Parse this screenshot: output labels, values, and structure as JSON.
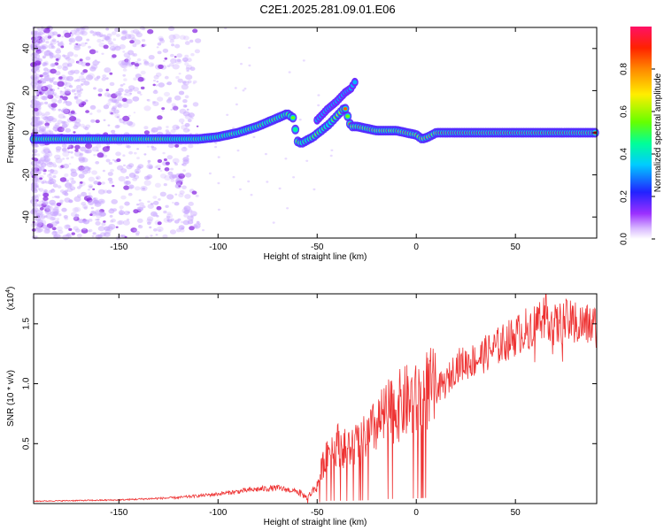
{
  "title": "C2E1.2025.281.09.01.E06",
  "chart_data": [
    {
      "type": "heatmap",
      "xlabel": "Height of straight line (km)",
      "ylabel": "Frequency (Hz)",
      "xlim": [
        -193,
        91
      ],
      "ylim": [
        -50,
        50
      ],
      "xticks": [
        -150,
        -100,
        -50,
        0,
        50
      ],
      "yticks": [
        -40,
        -20,
        0,
        20,
        40
      ],
      "ridge": {
        "x": [
          -193,
          -170,
          -150,
          -130,
          -110,
          -100,
          -90,
          -80,
          -70,
          -65,
          -62,
          -60,
          -58,
          -56,
          -52,
          -48,
          -44,
          -40,
          -36,
          -33,
          -30,
          -25,
          -20,
          -15,
          -10,
          -5,
          0,
          3,
          6,
          10,
          20,
          91
        ],
        "y": [
          -3,
          -3,
          -3,
          -3,
          -3,
          -2,
          0,
          3,
          7,
          9,
          7,
          -4,
          -5,
          -4,
          -2,
          1,
          4,
          8,
          12,
          3,
          3,
          2,
          1,
          1,
          1,
          0,
          -1,
          -3,
          -2,
          0,
          0,
          0
        ]
      },
      "branch": {
        "x": [
          -50,
          -45,
          -40,
          -36,
          -33,
          -31
        ],
        "y": [
          6,
          11,
          15,
          19,
          21,
          24
        ]
      },
      "colorbar": {
        "label": "Normalized spectral amplitude",
        "range": [
          0,
          1
        ],
        "ticks": [
          "0.0",
          "0.2",
          "0.4",
          "0.6",
          "0.8"
        ]
      }
    },
    {
      "type": "line",
      "xlabel": "Height of straight line (km)",
      "ylabel": "SNR (10 * v/v)",
      "y_multiplier": "(x10",
      "y_multiplier_exp": "4",
      "y_multiplier_close": ")",
      "xlim": [
        -193,
        91
      ],
      "ylim": [
        0,
        1.75
      ],
      "xticks": [
        -150,
        -100,
        -50,
        0,
        50
      ],
      "yticks": [
        "0.5",
        "1.0",
        "1.5"
      ],
      "color": "#ee3333",
      "envelope": {
        "x": [
          -193,
          -150,
          -120,
          -100,
          -80,
          -70,
          -60,
          -55,
          -50,
          -45,
          -40,
          -35,
          -30,
          -25,
          -20,
          -15,
          -10,
          -5,
          0,
          5,
          10,
          15,
          20,
          30,
          40,
          50,
          60,
          65,
          70,
          75,
          80,
          91
        ],
        "y": [
          0.02,
          0.03,
          0.05,
          0.08,
          0.12,
          0.13,
          0.1,
          0.05,
          0.15,
          0.45,
          0.5,
          0.45,
          0.5,
          0.55,
          0.65,
          0.75,
          0.8,
          0.85,
          0.85,
          0.95,
          0.95,
          1.0,
          1.15,
          1.2,
          1.3,
          1.4,
          1.5,
          1.6,
          1.48,
          1.52,
          1.5,
          1.48
        ]
      }
    }
  ]
}
